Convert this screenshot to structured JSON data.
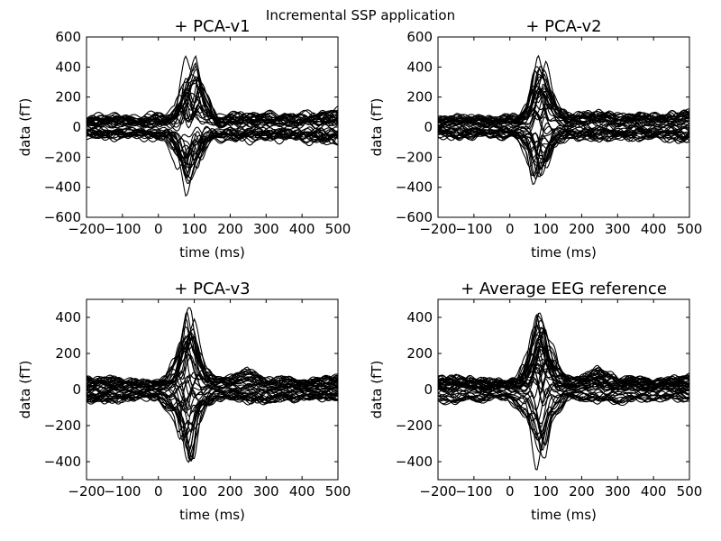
{
  "figure": {
    "suptitle": "Incremental SSP application"
  },
  "chart_data": [
    {
      "type": "line",
      "title": "+ PCA-v1",
      "xlabel": "time (ms)",
      "ylabel": "data (fT)",
      "xlim": [
        -200,
        500
      ],
      "ylim": [
        -600,
        600
      ],
      "xticks": [
        -200,
        -100,
        0,
        100,
        200,
        300,
        400,
        500
      ],
      "yticks": [
        -600,
        -400,
        -200,
        0,
        200,
        400,
        600
      ],
      "grid": false,
      "line_color": "#000000",
      "envelope": {
        "x": [
          -200,
          -150,
          -100,
          -50,
          0,
          25,
          50,
          65,
          80,
          95,
          110,
          130,
          160,
          200,
          250,
          300,
          350,
          400,
          450,
          500
        ],
        "upper": [
          70,
          95,
          90,
          75,
          110,
          90,
          150,
          330,
          440,
          430,
          500,
          280,
          90,
          90,
          120,
          100,
          110,
          95,
          120,
          130
        ],
        "lower": [
          -80,
          -90,
          -85,
          -80,
          -100,
          -110,
          -230,
          -390,
          -470,
          -380,
          -330,
          -160,
          -110,
          -100,
          -110,
          -95,
          -100,
          -100,
          -130,
          -120
        ]
      }
    },
    {
      "type": "line",
      "title": "+ PCA-v2",
      "xlabel": "time (ms)",
      "ylabel": "data (fT)",
      "xlim": [
        -200,
        500
      ],
      "ylim": [
        -600,
        600
      ],
      "xticks": [
        -200,
        -100,
        0,
        100,
        200,
        300,
        400,
        500
      ],
      "yticks": [
        -600,
        -400,
        -200,
        0,
        200,
        400,
        600
      ],
      "grid": false,
      "line_color": "#000000",
      "envelope": {
        "x": [
          -200,
          -150,
          -100,
          -50,
          0,
          25,
          50,
          65,
          80,
          95,
          110,
          130,
          160,
          200,
          250,
          300,
          350,
          400,
          450,
          500
        ],
        "upper": [
          65,
          85,
          80,
          70,
          90,
          80,
          170,
          330,
          450,
          470,
          300,
          180,
          90,
          100,
          120,
          90,
          100,
          90,
          100,
          120
        ],
        "lower": [
          -70,
          -90,
          -80,
          -75,
          -90,
          -100,
          -200,
          -370,
          -440,
          -360,
          -230,
          -120,
          -95,
          -90,
          -100,
          -90,
          -95,
          -85,
          -100,
          -110
        ]
      }
    },
    {
      "type": "line",
      "title": "+ PCA-v3",
      "xlabel": "time (ms)",
      "ylabel": "data (fT)",
      "xlim": [
        -200,
        500
      ],
      "ylim": [
        -500,
        500
      ],
      "xticks": [
        -200,
        -100,
        0,
        100,
        200,
        300,
        400,
        500
      ],
      "yticks": [
        -400,
        -200,
        0,
        200,
        400
      ],
      "grid": false,
      "line_color": "#000000",
      "envelope": {
        "x": [
          -200,
          -150,
          -100,
          -50,
          0,
          25,
          50,
          65,
          80,
          95,
          110,
          130,
          160,
          200,
          250,
          300,
          350,
          400,
          450,
          500
        ],
        "upper": [
          75,
          80,
          70,
          60,
          60,
          80,
          200,
          330,
          460,
          450,
          300,
          150,
          80,
          90,
          140,
          70,
          80,
          60,
          75,
          90
        ],
        "lower": [
          -75,
          -80,
          -70,
          -60,
          -60,
          -130,
          -190,
          -330,
          -420,
          -380,
          -210,
          -130,
          -60,
          -60,
          -80,
          -80,
          -70,
          -65,
          -60,
          -70
        ]
      }
    },
    {
      "type": "line",
      "title": "+ Average EEG reference",
      "xlabel": "time (ms)",
      "ylabel": "data (fT)",
      "xlim": [
        -200,
        500
      ],
      "ylim": [
        -500,
        500
      ],
      "xticks": [
        -200,
        -100,
        0,
        100,
        200,
        300,
        400,
        500
      ],
      "yticks": [
        -400,
        -200,
        0,
        200,
        400
      ],
      "grid": false,
      "line_color": "#000000",
      "envelope": {
        "x": [
          -200,
          -150,
          -100,
          -50,
          0,
          25,
          50,
          65,
          80,
          95,
          110,
          130,
          160,
          200,
          250,
          300,
          350,
          400,
          450,
          500
        ],
        "upper": [
          75,
          80,
          70,
          60,
          60,
          80,
          200,
          330,
          460,
          450,
          300,
          150,
          80,
          90,
          140,
          70,
          80,
          60,
          75,
          90
        ],
        "lower": [
          -75,
          -80,
          -70,
          -60,
          -60,
          -130,
          -190,
          -330,
          -420,
          -380,
          -210,
          -130,
          -60,
          -60,
          -80,
          -80,
          -70,
          -65,
          -60,
          -70
        ]
      }
    }
  ]
}
